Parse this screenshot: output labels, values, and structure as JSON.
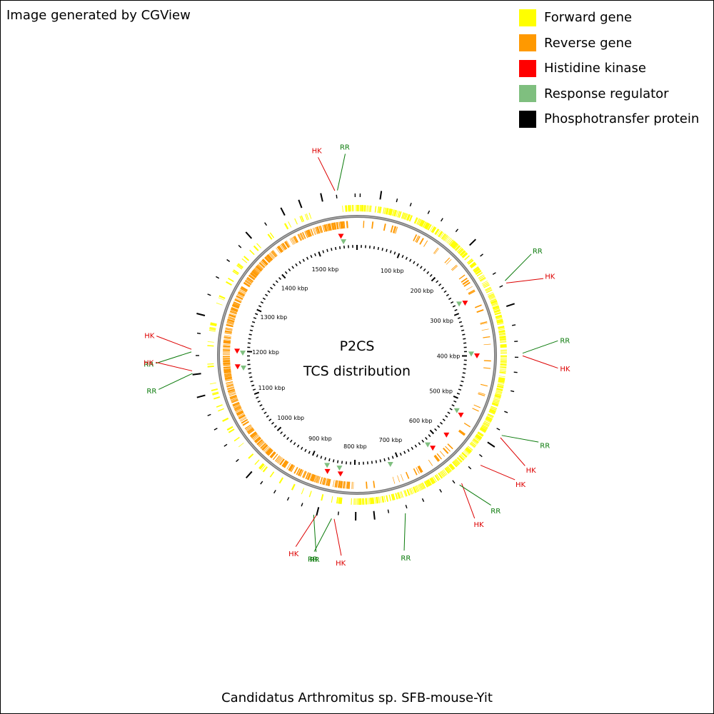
{
  "header": {
    "credit": "Image generated by CGView"
  },
  "legend": [
    {
      "label": "Forward gene",
      "color": "#ffff00"
    },
    {
      "label": "Reverse gene",
      "color": "#ff9900"
    },
    {
      "label": "Histidine kinase",
      "color": "#ff0000"
    },
    {
      "label": "Response regulator",
      "color": "#7fbf7f"
    },
    {
      "label": "Phosphotransfer protein",
      "color": "#000000"
    }
  ],
  "map": {
    "center_title": "P2CS",
    "center_subtitle": "TCS distribution",
    "genome_length_kbp": 1590,
    "scale_labels": [
      {
        "kbp": 100,
        "text": "100 kbp"
      },
      {
        "kbp": 200,
        "text": "200 kbp"
      },
      {
        "kbp": 300,
        "text": "300 kbp"
      },
      {
        "kbp": 400,
        "text": "400 kbp"
      },
      {
        "kbp": 500,
        "text": "500 kbp"
      },
      {
        "kbp": 600,
        "text": "600 kbp"
      },
      {
        "kbp": 700,
        "text": "700 kbp"
      },
      {
        "kbp": 800,
        "text": "800 kbp"
      },
      {
        "kbp": 900,
        "text": "900 kbp"
      },
      {
        "kbp": 1000,
        "text": "1000 kbp"
      },
      {
        "kbp": 1100,
        "text": "1100 kbp"
      },
      {
        "kbp": 1200,
        "text": "1200 kbp"
      },
      {
        "kbp": 1300,
        "text": "1300 kbp"
      },
      {
        "kbp": 1400,
        "text": "1400 kbp"
      },
      {
        "kbp": 1500,
        "text": "1500 kbp"
      }
    ],
    "features": [
      {
        "label": "HK",
        "type": "histidine_kinase",
        "kbp": 1556
      },
      {
        "label": "RR",
        "type": "response_regulator",
        "kbp": 1560
      },
      {
        "label": "RR",
        "type": "response_regulator",
        "kbp": 280
      },
      {
        "label": "HK",
        "type": "histidine_kinase",
        "kbp": 284
      },
      {
        "label": "RR",
        "type": "response_regulator",
        "kbp": 395
      },
      {
        "label": "HK",
        "type": "histidine_kinase",
        "kbp": 399
      },
      {
        "label": "RR",
        "type": "response_regulator",
        "kbp": 526
      },
      {
        "label": "HK",
        "type": "histidine_kinase",
        "kbp": 530
      },
      {
        "label": "HK",
        "type": "histidine_kinase",
        "kbp": 582
      },
      {
        "label": "HK",
        "type": "histidine_kinase",
        "kbp": 622
      },
      {
        "label": "RR",
        "type": "response_regulator",
        "kbp": 626
      },
      {
        "label": "RR",
        "type": "response_regulator",
        "kbp": 720
      },
      {
        "label": "HK",
        "type": "histidine_kinase",
        "kbp": 830
      },
      {
        "label": "RR",
        "type": "response_regulator",
        "kbp": 834
      },
      {
        "label": "RR",
        "type": "response_regulator",
        "kbp": 862
      },
      {
        "label": "HK",
        "type": "histidine_kinase",
        "kbp": 858
      },
      {
        "label": "RR",
        "type": "response_regulator",
        "kbp": 1197
      },
      {
        "label": "HK",
        "type": "histidine_kinase",
        "kbp": 1201
      },
      {
        "label": "RR",
        "type": "response_regulator",
        "kbp": 1164
      },
      {
        "label": "HK",
        "type": "histidine_kinase",
        "kbp": 1168
      }
    ]
  },
  "footer": {
    "organism": "Candidatus Arthromitus sp. SFB-mouse-Yit"
  }
}
